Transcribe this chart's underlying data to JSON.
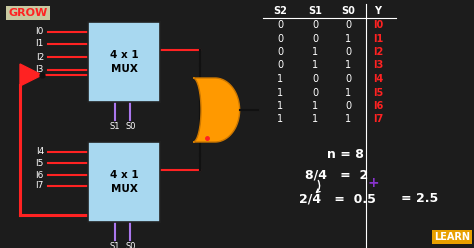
{
  "bg_color": "#1c1c1c",
  "grow_text": "GROW",
  "grow_color": "#ff2222",
  "grow_bg": "#c8c8a0",
  "learn_text": "LEARN",
  "learn_color": "#ffffff",
  "learn_bg": "#e8a000",
  "mux_color": "#a8d8f0",
  "mux_edge_color": "#222222",
  "mux_text": "4 x 1\nMUX",
  "red_color": "#ff2222",
  "dark_red": "#cc0000",
  "black_color": "#000000",
  "white_color": "#ffffff",
  "orange_color": "#ff9900",
  "orange_dark": "#cc7700",
  "purple_color": "#8833cc",
  "gray_color": "#888888",
  "table_header": [
    "S2",
    "S1",
    "S0",
    "Y"
  ],
  "table_data": [
    [
      0,
      0,
      0,
      "I0"
    ],
    [
      0,
      0,
      1,
      "I1"
    ],
    [
      0,
      1,
      0,
      "I2"
    ],
    [
      0,
      1,
      1,
      "I3"
    ],
    [
      1,
      0,
      0,
      "I4"
    ],
    [
      1,
      0,
      1,
      "I5"
    ],
    [
      1,
      1,
      0,
      "I6"
    ],
    [
      1,
      1,
      1,
      "I7"
    ]
  ],
  "input_labels_top": [
    "I0",
    "I1",
    "I2",
    "I3"
  ],
  "input_labels_bot": [
    "I4",
    "I5",
    "I6",
    "I7"
  ]
}
